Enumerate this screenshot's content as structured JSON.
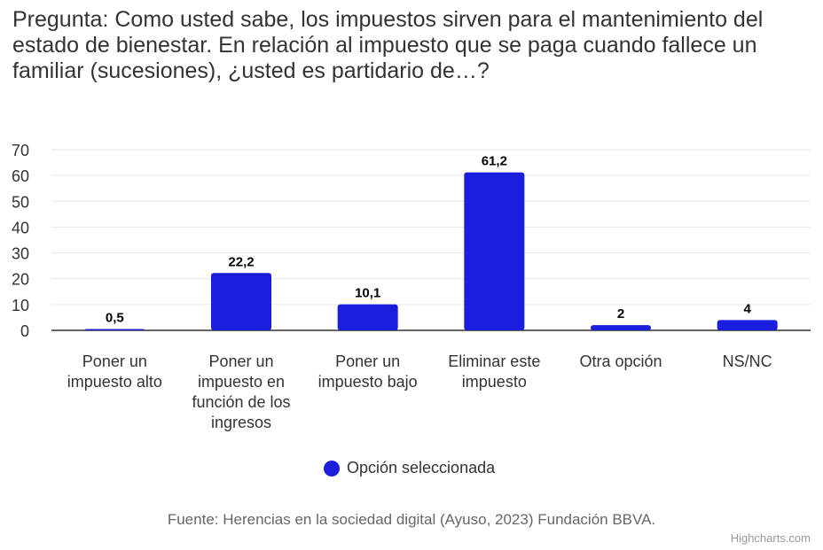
{
  "chart_data": {
    "type": "bar",
    "title": "Pregunta: Como usted sabe, los impuestos sirven para el mantenimiento del estado de bienestar. En relación al impuesto que se paga cuando fallece un familiar (sucesiones), ¿usted es partidario de…?",
    "categories": [
      [
        "Poner un",
        "impuesto alto"
      ],
      [
        "Poner un",
        "impuesto en",
        "función de los",
        "ingresos"
      ],
      [
        "Poner un",
        "impuesto bajo"
      ],
      [
        "Eliminar este",
        "impuesto"
      ],
      [
        "Otra opción"
      ],
      [
        "NS/NC"
      ]
    ],
    "series": [
      {
        "name": "Opción seleccionada",
        "values": [
          0.5,
          22.2,
          10.1,
          61.2,
          2,
          4
        ],
        "color": "#1a1ddb"
      }
    ],
    "data_labels": [
      "0,5",
      "22,2",
      "10,1",
      "61,2",
      "2",
      "4"
    ],
    "ylim": [
      0,
      70
    ],
    "yticks": [
      0,
      10,
      20,
      30,
      40,
      50,
      60,
      70
    ],
    "grid": true,
    "legend": "bottom-center",
    "xlabel": "",
    "ylabel": ""
  },
  "source": "Fuente: Herencias en la sociedad digital (Ayuso, 2023) Fundación BBVA.",
  "credits": "Highcharts.com"
}
